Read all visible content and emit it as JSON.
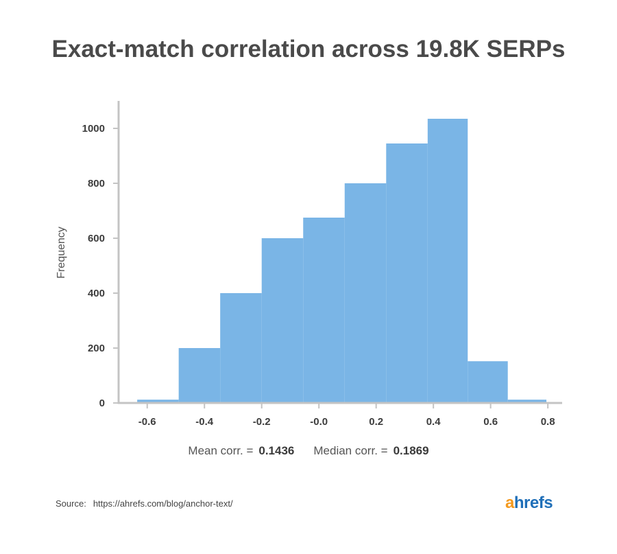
{
  "chart_data": {
    "type": "bar",
    "title": "Exact-match correlation across 19.8K SERPs",
    "xlabel": "",
    "ylabel": "Frequency",
    "xlim": [
      -0.7,
      0.85
    ],
    "ylim": [
      0,
      1100
    ],
    "xticks": [
      -0.6,
      -0.4,
      -0.2,
      0.0,
      0.2,
      0.4,
      0.6,
      0.8
    ],
    "xtick_labels": [
      "-0.6",
      "-0.4",
      "-0.2",
      "-0.0",
      "0.2",
      "0.4",
      "0.6",
      "0.8"
    ],
    "yticks": [
      0,
      200,
      400,
      600,
      800,
      1000
    ],
    "ytick_labels": [
      "0",
      "200",
      "400",
      "600",
      "800",
      "1000"
    ],
    "bins": [
      {
        "x0": -0.635,
        "x1": -0.49,
        "value": 12
      },
      {
        "x0": -0.49,
        "x1": -0.345,
        "value": 200
      },
      {
        "x0": -0.345,
        "x1": -0.2,
        "value": 400
      },
      {
        "x0": -0.2,
        "x1": -0.055,
        "value": 600
      },
      {
        "x0": -0.055,
        "x1": 0.09,
        "value": 675
      },
      {
        "x0": 0.09,
        "x1": 0.235,
        "value": 800
      },
      {
        "x0": 0.235,
        "x1": 0.38,
        "value": 945
      },
      {
        "x0": 0.38,
        "x1": 0.52,
        "value": 1035
      },
      {
        "x0": 0.52,
        "x1": 0.66,
        "value": 152
      },
      {
        "x0": 0.66,
        "x1": 0.795,
        "value": 12
      }
    ],
    "bar_color": "#7ab5e6",
    "axis_color": "#c4c4c4",
    "grid": false
  },
  "stats": {
    "mean_label": "Mean corr. =",
    "mean_value": "0.1436",
    "median_label": "Median corr. =",
    "median_value": "0.1869"
  },
  "source": {
    "label": "Source:",
    "url": "https://ahrefs.com/blog/anchor-text/"
  },
  "logo": {
    "first": "a",
    "rest": "hrefs",
    "first_color": "#f49a1f",
    "rest_color": "#1f6fb8"
  }
}
